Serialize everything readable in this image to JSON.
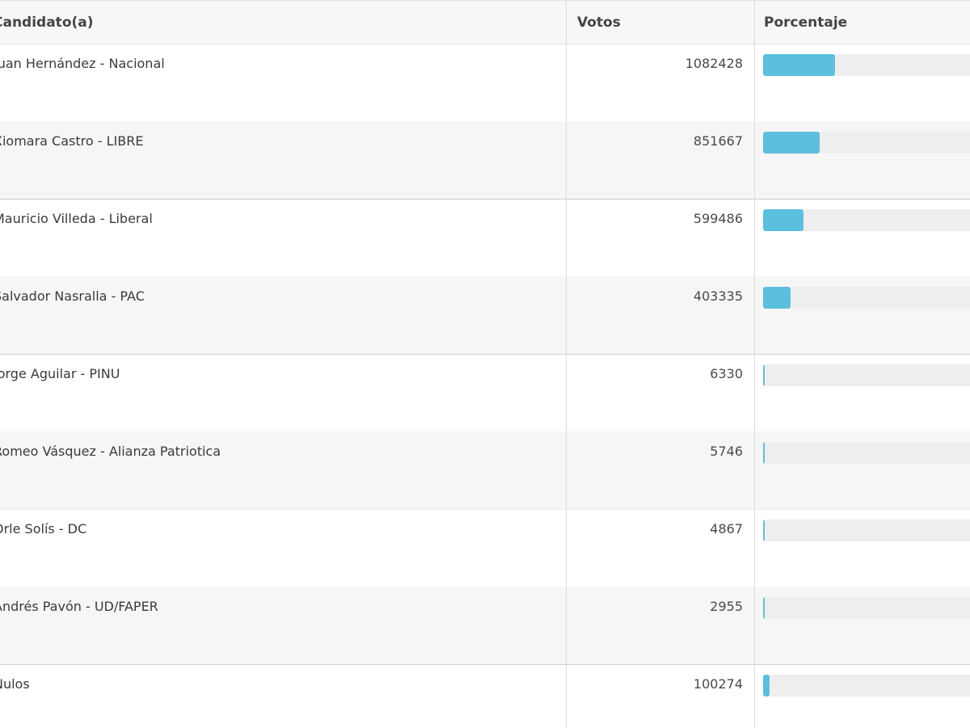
{
  "columns": {
    "candidate": "Candidato(a)",
    "votes": "Votos",
    "percentage": "Porcentaje"
  },
  "rows": [
    {
      "candidate": "Juan Hernández - Nacional",
      "votes": "1082428",
      "percent": 0.33
    },
    {
      "candidate": "Xiomara Castro - LIBRE",
      "votes": "851667",
      "percent": 0.26
    },
    {
      "candidate": "Mauricio Villeda - Liberal",
      "votes": "599486",
      "percent": 0.185
    },
    {
      "candidate": "Salvador Nasralla - PAC",
      "votes": "403335",
      "percent": 0.125
    },
    {
      "candidate": "Jorge Aguilar - PINU",
      "votes": "6330",
      "percent": 0.002
    },
    {
      "candidate": "Romeo Vásquez - Alianza Patriotica",
      "votes": "5746",
      "percent": 0.002
    },
    {
      "candidate": "Orle Solís - DC",
      "votes": "4867",
      "percent": 0.0015
    },
    {
      "candidate": "Andrés Pavón - UD/FAPER",
      "votes": "2955",
      "percent": 0.001
    },
    {
      "candidate": "Nulos",
      "votes": "100274",
      "percent": 0.031
    }
  ],
  "colors": {
    "bar_fill": "#5cbfde",
    "bar_track": "#eeeeee",
    "header_bg": "#f7f7f7",
    "row_alt_bg": "#f6f6f6"
  }
}
